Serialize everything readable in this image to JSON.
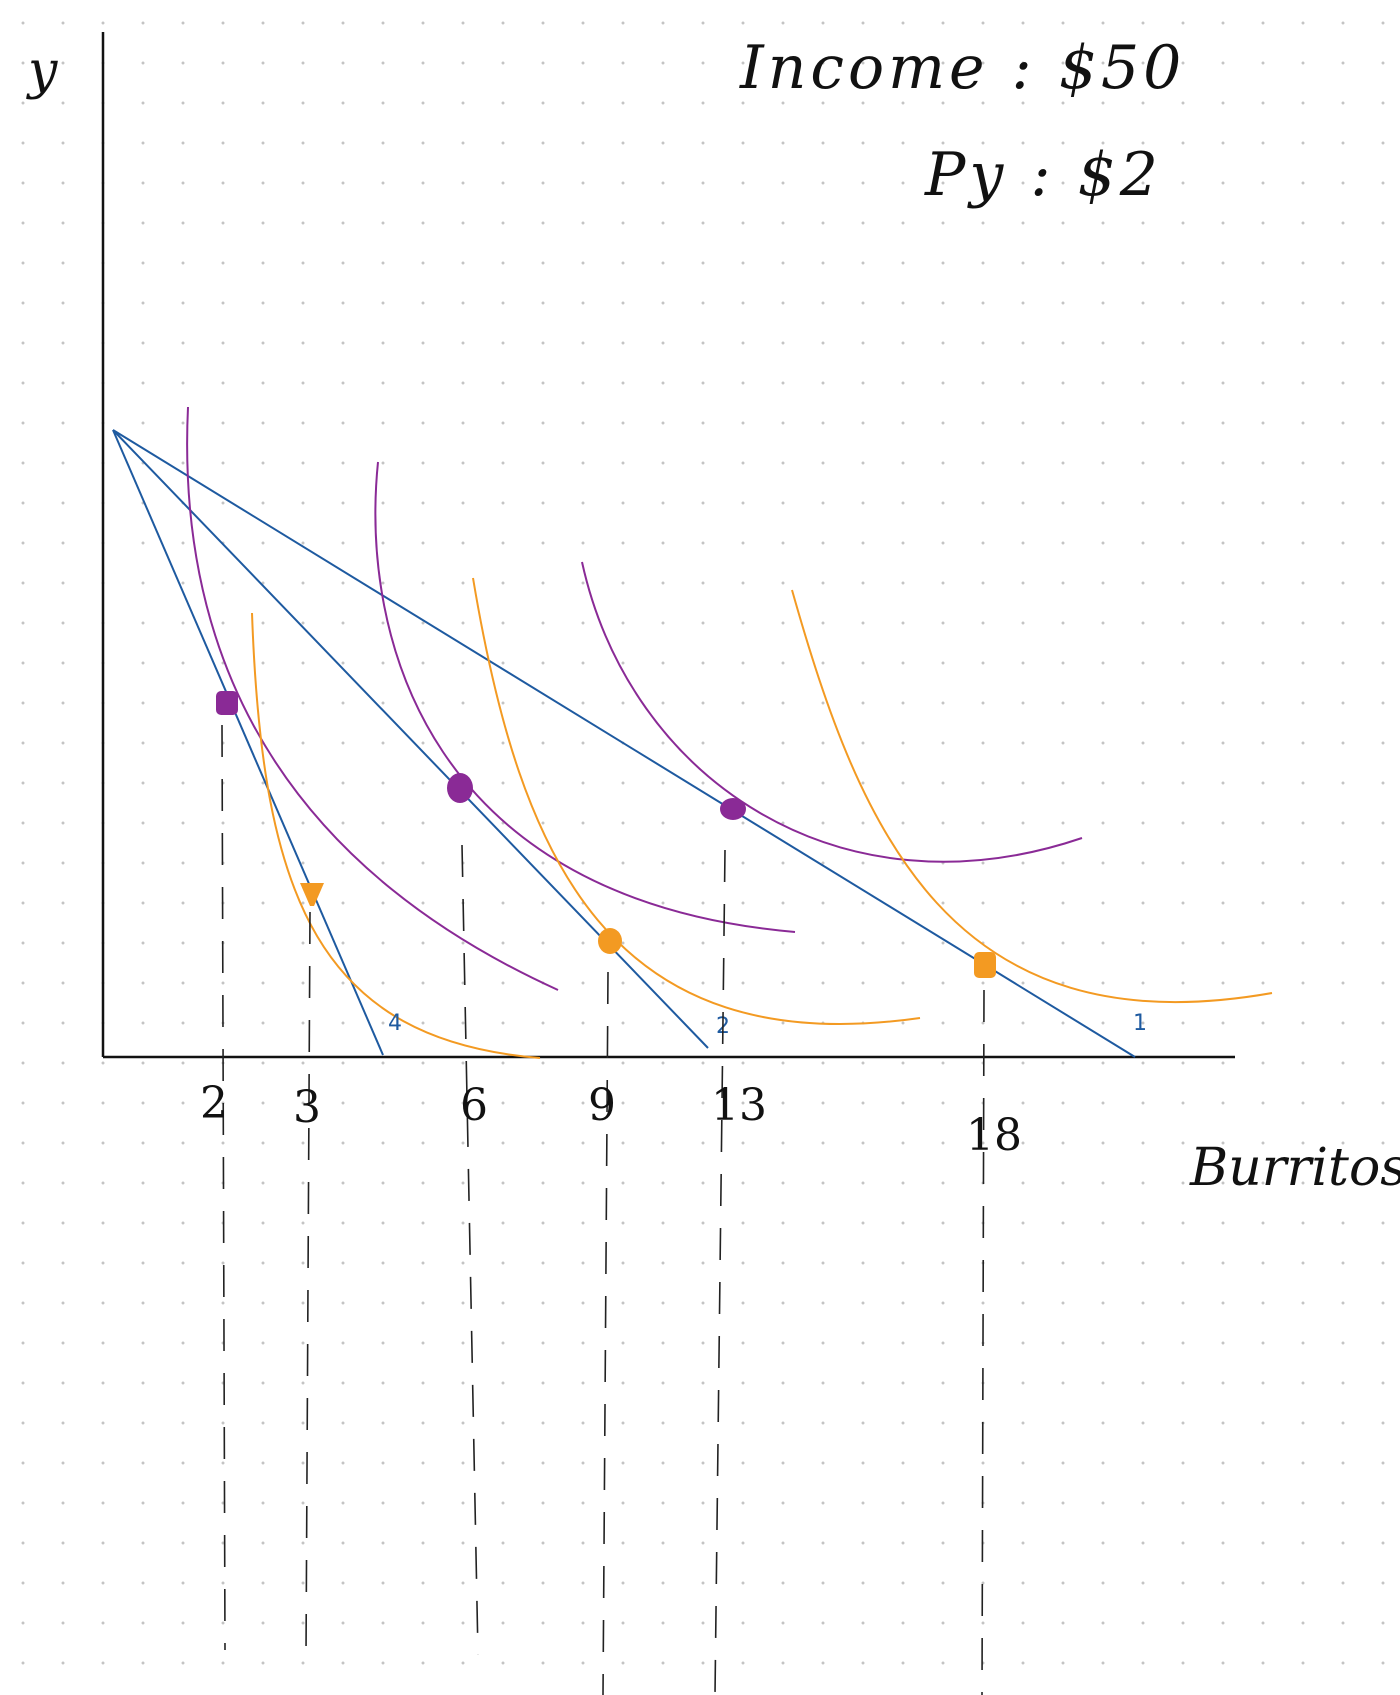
{
  "annotations": {
    "income": "Income : $50",
    "price_y": "Py : $2"
  },
  "axes": {
    "y_label": "y",
    "x_label": "Burritos",
    "x_ticks": [
      "2",
      "3",
      "6",
      "9",
      "13",
      "18"
    ]
  },
  "budget_line_labels": [
    "4",
    "2",
    "1"
  ],
  "colors": {
    "budget_line": "#1e5aa0",
    "indifference_purple": "#8a2a96",
    "indifference_orange": "#f39a22",
    "axis": "#111111",
    "guide": "#222222"
  }
}
